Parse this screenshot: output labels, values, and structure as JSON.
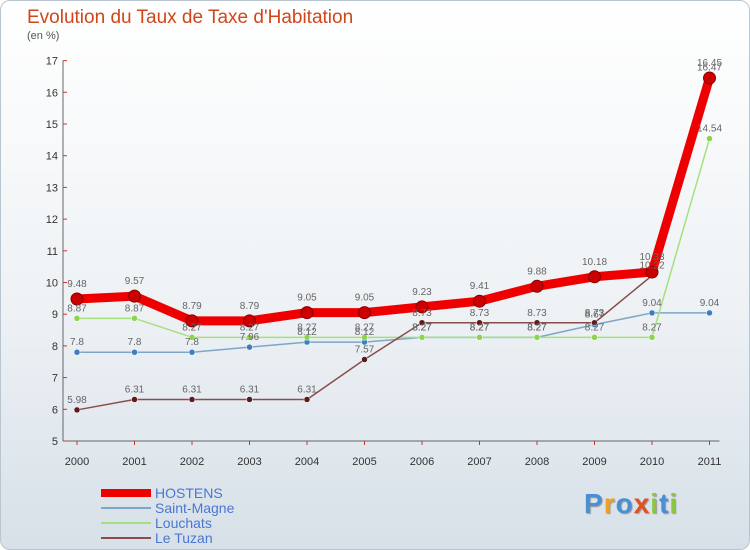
{
  "title": "Evolution du Taux de Taxe d'Habitation",
  "subtitle": "(en %)",
  "logo_text": "Proxiti",
  "chart_data": {
    "type": "line",
    "title": "Evolution du Taux de Taxe d'Habitation",
    "ylabel": "(en %)",
    "xlabel": "",
    "categories": [
      "2000",
      "2001",
      "2002",
      "2003",
      "2004",
      "2005",
      "2006",
      "2007",
      "2008",
      "2009",
      "2010",
      "2011"
    ],
    "ylim": [
      5,
      17
    ],
    "yticks": [
      5,
      6,
      7,
      8,
      9,
      10,
      11,
      12,
      13,
      14,
      15,
      16,
      17
    ],
    "grid": false,
    "legend_position": "bottom-left",
    "series": [
      {
        "name": "HOSTENS",
        "color": "#ee0000",
        "point_color": "#cc0000",
        "values": [
          9.48,
          9.57,
          8.79,
          8.79,
          9.05,
          9.05,
          9.23,
          9.41,
          9.88,
          10.18,
          10.33,
          16.45
        ]
      },
      {
        "name": "Saint-Magne",
        "color": "#7ea6c8",
        "point_color": "#3c7fc0",
        "values": [
          7.8,
          7.8,
          7.8,
          7.96,
          8.12,
          8.12,
          8.27,
          8.27,
          8.27,
          8.67,
          9.04,
          9.04
        ]
      },
      {
        "name": "Louchats",
        "color": "#a6e07e",
        "point_color": "#8cd44a",
        "values": [
          8.87,
          8.87,
          8.27,
          8.27,
          8.27,
          8.27,
          8.27,
          8.27,
          8.27,
          8.27,
          8.27,
          14.54
        ]
      },
      {
        "name": "Le Tuzan",
        "color": "#8b4c4c",
        "point_color": "#5e1b1b",
        "values": [
          5.98,
          6.31,
          6.31,
          6.31,
          6.31,
          7.57,
          8.73,
          8.73,
          8.73,
          8.73,
          10.22,
          16.47
        ]
      }
    ]
  }
}
